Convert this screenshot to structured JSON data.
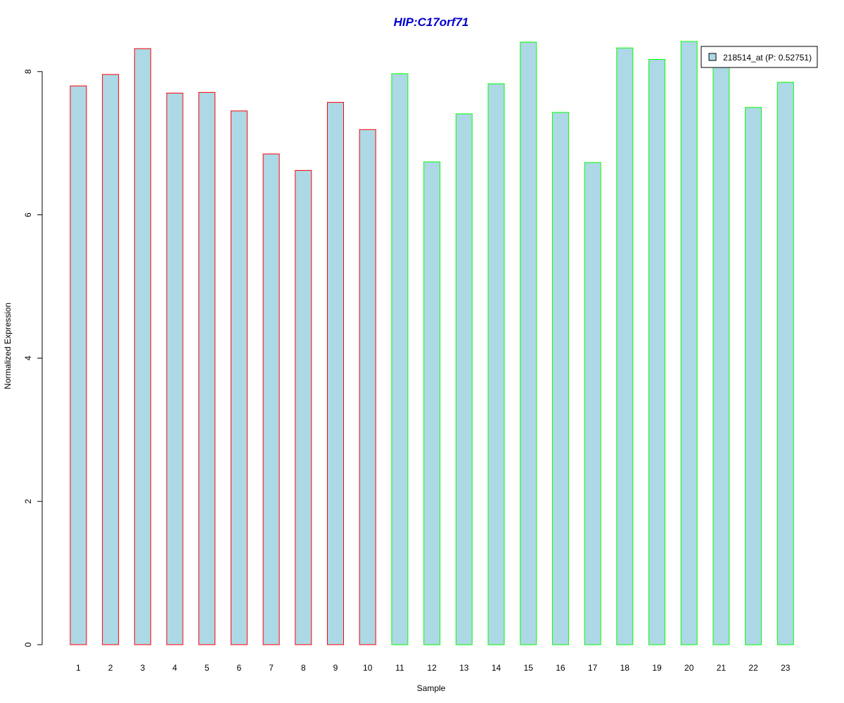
{
  "chart_data": {
    "type": "bar",
    "title": "HIP:C17orf71",
    "xlabel": "Sample",
    "ylabel": "Normalized Expression",
    "ylim": [
      0,
      8.4
    ],
    "yticks": [
      0,
      2,
      4,
      6,
      8
    ],
    "grid": false,
    "legend_position": "top-right",
    "categories": [
      "1",
      "2",
      "3",
      "4",
      "5",
      "6",
      "7",
      "8",
      "9",
      "10",
      "11",
      "12",
      "13",
      "14",
      "15",
      "16",
      "17",
      "18",
      "19",
      "20",
      "21",
      "22",
      "23"
    ],
    "series": [
      {
        "name": "218514_at (P: 0.52751)",
        "values": [
          7.8,
          7.96,
          8.32,
          7.7,
          7.71,
          7.45,
          6.85,
          6.62,
          7.57,
          7.19,
          7.97,
          6.74,
          7.41,
          7.83,
          8.41,
          7.43,
          6.73,
          8.33,
          8.17,
          8.42,
          8.12,
          7.5,
          7.85
        ]
      }
    ],
    "bar_group": [
      "A",
      "A",
      "A",
      "A",
      "A",
      "A",
      "A",
      "A",
      "A",
      "A",
      "B",
      "B",
      "B",
      "B",
      "B",
      "B",
      "B",
      "B",
      "B",
      "B",
      "B",
      "B",
      "B"
    ],
    "colors": {
      "bar_fill": "#ADD8E6",
      "group_A_border": "#FF0000",
      "group_B_border": "#00FF00",
      "title": "#0000CD",
      "axis": "#000000"
    }
  }
}
